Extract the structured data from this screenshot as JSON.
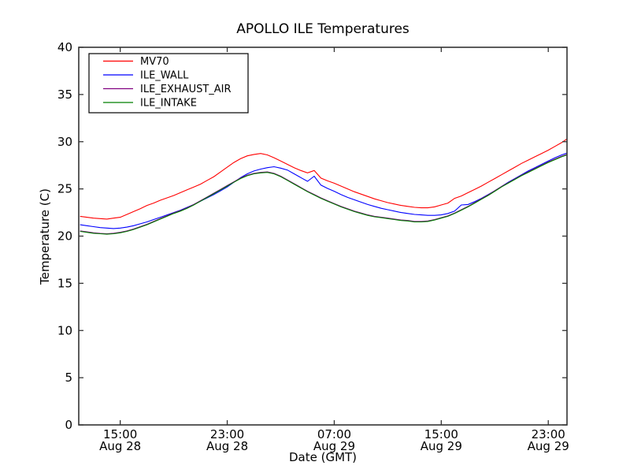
{
  "chart_data": {
    "type": "line",
    "title": "APOLLO ILE Temperatures",
    "xlabel": "Date (GMT)",
    "ylabel": "Temperature (C)",
    "grid": false,
    "legend_position": "upper left",
    "ylim": [
      0,
      40
    ],
    "y_ticks": [
      0,
      5,
      10,
      15,
      20,
      25,
      30,
      35,
      40
    ],
    "xlim_hours": [
      11.9,
      48.4
    ],
    "x_ticks": [
      {
        "hour": 15,
        "line1": "15:00",
        "line2": "Aug 28"
      },
      {
        "hour": 23,
        "line1": "23:00",
        "line2": "Aug 28"
      },
      {
        "hour": 31,
        "line1": "07:00",
        "line2": "Aug 29"
      },
      {
        "hour": 39,
        "line1": "15:00",
        "line2": "Aug 29"
      },
      {
        "hour": 47,
        "line1": "23:00",
        "line2": "Aug 29"
      }
    ],
    "x_hours": [
      12,
      12.5,
      13,
      13.5,
      14,
      14.5,
      15,
      15.5,
      16,
      16.5,
      17,
      17.5,
      18,
      18.5,
      19,
      19.5,
      20,
      20.5,
      21,
      21.5,
      22,
      22.5,
      23,
      23.5,
      24,
      24.5,
      25,
      25.5,
      26,
      26.5,
      27,
      27.5,
      28,
      28.5,
      29,
      29.5,
      30,
      30.5,
      31,
      31.5,
      32,
      32.5,
      33,
      33.5,
      34,
      34.5,
      35,
      35.5,
      36,
      36.5,
      37,
      37.5,
      38,
      38.5,
      39,
      39.5,
      40,
      40.5,
      41,
      41.5,
      42,
      42.5,
      43,
      43.5,
      44,
      44.5,
      45,
      45.5,
      46,
      46.5,
      47,
      47.5,
      48,
      48.4
    ],
    "series": [
      {
        "name": "MV70",
        "color": "#ff0000",
        "values": [
          22.1,
          22.0,
          21.9,
          21.85,
          21.8,
          21.9,
          22.0,
          22.3,
          22.6,
          22.9,
          23.25,
          23.5,
          23.8,
          24.05,
          24.3,
          24.6,
          24.9,
          25.2,
          25.5,
          25.9,
          26.3,
          26.8,
          27.3,
          27.8,
          28.2,
          28.5,
          28.65,
          28.75,
          28.6,
          28.3,
          27.95,
          27.6,
          27.25,
          26.95,
          26.7,
          26.95,
          26.15,
          25.85,
          25.6,
          25.3,
          25.0,
          24.7,
          24.45,
          24.2,
          23.95,
          23.75,
          23.55,
          23.4,
          23.25,
          23.15,
          23.05,
          23.0,
          23.0,
          23.1,
          23.3,
          23.5,
          24.0,
          24.25,
          24.6,
          24.95,
          25.3,
          25.7,
          26.1,
          26.5,
          26.9,
          27.3,
          27.7,
          28.05,
          28.4,
          28.75,
          29.1,
          29.5,
          29.9,
          30.3
        ]
      },
      {
        "name": "ILE_WALL",
        "color": "#0000ff",
        "values": [
          21.2,
          21.1,
          21.0,
          20.9,
          20.85,
          20.8,
          20.85,
          20.95,
          21.1,
          21.3,
          21.5,
          21.75,
          22.0,
          22.25,
          22.5,
          22.75,
          23.05,
          23.35,
          23.7,
          24.05,
          24.4,
          24.8,
          25.2,
          25.7,
          26.2,
          26.6,
          26.9,
          27.1,
          27.25,
          27.35,
          27.2,
          27.0,
          26.6,
          26.2,
          25.8,
          26.35,
          25.4,
          25.05,
          24.75,
          24.4,
          24.1,
          23.85,
          23.6,
          23.35,
          23.15,
          22.95,
          22.8,
          22.65,
          22.5,
          22.4,
          22.3,
          22.25,
          22.2,
          22.2,
          22.25,
          22.4,
          22.65,
          23.3,
          23.35,
          23.65,
          24.0,
          24.4,
          24.8,
          25.25,
          25.7,
          26.1,
          26.5,
          26.9,
          27.25,
          27.6,
          27.95,
          28.3,
          28.6,
          28.8
        ]
      },
      {
        "name": "ILE_EXHAUST_AIR",
        "color": "#800080",
        "values": [
          20.55,
          20.45,
          20.35,
          20.28,
          20.25,
          20.3,
          20.4,
          20.55,
          20.75,
          21.0,
          21.25,
          21.55,
          21.85,
          22.15,
          22.45,
          22.7,
          23.0,
          23.35,
          23.75,
          24.15,
          24.55,
          24.95,
          25.35,
          25.75,
          26.15,
          26.45,
          26.65,
          26.75,
          26.8,
          26.65,
          26.35,
          25.95,
          25.55,
          25.15,
          24.75,
          24.4,
          24.05,
          23.75,
          23.45,
          23.15,
          22.9,
          22.65,
          22.45,
          22.25,
          22.1,
          22.0,
          21.9,
          21.8,
          21.7,
          21.65,
          21.55,
          21.55,
          21.6,
          21.75,
          21.95,
          22.15,
          22.45,
          22.8,
          23.15,
          23.55,
          23.95,
          24.35,
          24.8,
          25.25,
          25.65,
          26.05,
          26.45,
          26.8,
          27.15,
          27.5,
          27.85,
          28.15,
          28.45,
          28.65
        ]
      },
      {
        "name": "ILE_INTAKE",
        "color": "#007f00",
        "values": [
          20.5,
          20.4,
          20.3,
          20.25,
          20.2,
          20.25,
          20.35,
          20.5,
          20.7,
          20.95,
          21.2,
          21.5,
          21.8,
          22.1,
          22.4,
          22.65,
          22.95,
          23.3,
          23.7,
          24.1,
          24.5,
          24.9,
          25.3,
          25.7,
          26.1,
          26.4,
          26.6,
          26.7,
          26.75,
          26.6,
          26.3,
          25.9,
          25.5,
          25.1,
          24.7,
          24.35,
          24.0,
          23.7,
          23.4,
          23.1,
          22.85,
          22.6,
          22.4,
          22.2,
          22.05,
          21.95,
          21.85,
          21.75,
          21.65,
          21.6,
          21.5,
          21.5,
          21.55,
          21.7,
          21.9,
          22.1,
          22.4,
          22.75,
          23.1,
          23.5,
          23.9,
          24.3,
          24.75,
          25.2,
          25.6,
          26.0,
          26.4,
          26.75,
          27.1,
          27.45,
          27.8,
          28.1,
          28.4,
          28.6
        ]
      }
    ],
    "colors": {
      "spine": "#333333",
      "text": "#000000",
      "background": "#ffffff"
    }
  }
}
